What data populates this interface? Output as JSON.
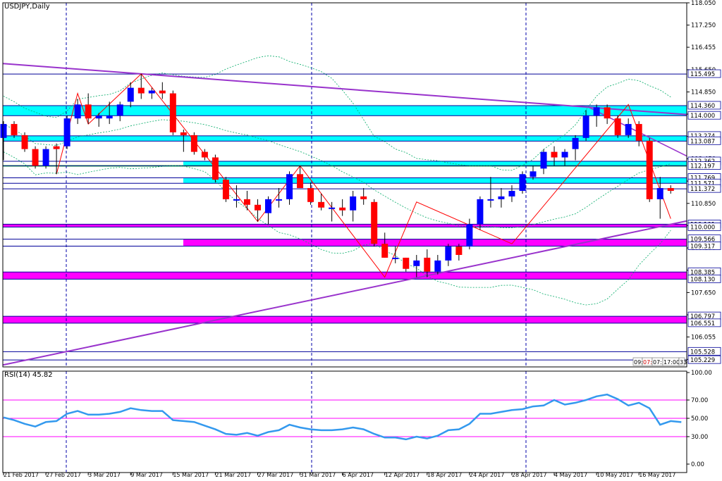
{
  "symbol_label": "USDJPY,Daily",
  "rsi_label": "RSI(14) 45.82",
  "timer": [
    "09:",
    "07:",
    "07:",
    "17:00",
    "33"
  ],
  "colors": {
    "bull": "#0000ff",
    "bear": "#ff0000",
    "wick": "#000000",
    "cyan_zone": "#00ffff",
    "magenta_zone": "#ff00ff",
    "trendline": "#9933cc",
    "zigzag": "#ff0000",
    "bollinger": "#00aa66",
    "rsi_line": "#3399ee",
    "rsi_level": "#ff00ff",
    "grid": "#0000aa",
    "level_line": "#000099"
  },
  "chart_data": [
    {
      "type": "candlestick",
      "title": "USDJPY,Daily",
      "x_tick_labels": [
        "21 Feb 2017",
        "27 Feb 2017",
        "3 Mar 2017",
        "9 Mar 2017",
        "15 Mar 2017",
        "21 Mar 2017",
        "27 Mar 2017",
        "31 Mar 2017",
        "6 Apr 2017",
        "12 Apr 2017",
        "18 Apr 2017",
        "24 Apr 2017",
        "28 Apr 2017",
        "4 May 2017",
        "10 May 2017",
        "16 May 2017"
      ],
      "y_tick_labels": [
        "118.050",
        "117.250",
        "116.455",
        "115.650",
        "114.850",
        "114.055",
        "113.255",
        "112.450",
        "111.650",
        "110.850",
        "110.055",
        "109.250",
        "108.450",
        "107.650",
        "106.850",
        "106.055",
        "105.250"
      ],
      "ylim": [
        104.98,
        118.05
      ],
      "price_levels": [
        "115.495",
        "114.360",
        "114.000",
        "113.274",
        "113.087",
        "112.362",
        "112.197",
        "111.769",
        "111.571",
        "111.372",
        "110.101",
        "110.000",
        "109.566",
        "109.317",
        "108.385",
        "108.130",
        "106.797",
        "106.551",
        "105.528",
        "105.229"
      ],
      "zones": [
        {
          "top": 114.36,
          "bottom": 114.0,
          "color": "cyan"
        },
        {
          "top": 113.274,
          "bottom": 113.087,
          "color": "cyan"
        },
        {
          "top": 112.362,
          "bottom": 112.197,
          "color": "cyan"
        },
        {
          "top": 111.769,
          "bottom": 111.571,
          "color": "cyan"
        },
        {
          "top": 110.101,
          "bottom": 110.0,
          "color": "magenta"
        },
        {
          "top": 109.566,
          "bottom": 109.317,
          "color": "magenta"
        },
        {
          "top": 108.385,
          "bottom": 108.13,
          "color": "magenta"
        },
        {
          "top": 106.797,
          "bottom": 106.551,
          "color": "magenta"
        }
      ],
      "candles": [
        {
          "date": "21 Feb 2017",
          "o": 113.2,
          "h": 113.8,
          "l": 112.4,
          "c": 113.7
        },
        {
          "date": "22 Feb 2017",
          "o": 113.7,
          "h": 113.8,
          "l": 113.2,
          "c": 113.3
        },
        {
          "date": "23 Feb 2017",
          "o": 113.3,
          "h": 113.4,
          "l": 112.7,
          "c": 112.8
        },
        {
          "date": "24 Feb 2017",
          "o": 112.8,
          "h": 112.9,
          "l": 112.1,
          "c": 112.2
        },
        {
          "date": "27 Feb 2017",
          "o": 112.2,
          "h": 112.9,
          "l": 112.1,
          "c": 112.8
        },
        {
          "date": "28 Feb 2017",
          "o": 112.9,
          "h": 113.0,
          "l": 111.9,
          "c": 112.8
        },
        {
          "date": "1 Mar 2017",
          "o": 112.9,
          "h": 114.0,
          "l": 112.8,
          "c": 113.9
        },
        {
          "date": "2 Mar 2017",
          "o": 113.9,
          "h": 114.6,
          "l": 113.7,
          "c": 114.4
        },
        {
          "date": "3 Mar 2017",
          "o": 114.4,
          "h": 114.8,
          "l": 113.7,
          "c": 113.9
        },
        {
          "date": "6 Mar 2017",
          "o": 113.9,
          "h": 114.1,
          "l": 113.6,
          "c": 114.0
        },
        {
          "date": "7 Mar 2017",
          "o": 113.9,
          "h": 114.5,
          "l": 113.7,
          "c": 114.0
        },
        {
          "date": "8 Mar 2017",
          "o": 114.0,
          "h": 114.5,
          "l": 113.8,
          "c": 114.4
        },
        {
          "date": "9 Mar 2017",
          "o": 114.5,
          "h": 115.2,
          "l": 114.3,
          "c": 115.0
        },
        {
          "date": "10 Mar 2017",
          "o": 115.0,
          "h": 115.5,
          "l": 114.6,
          "c": 114.8
        },
        {
          "date": "13 Mar 2017",
          "o": 114.8,
          "h": 115.0,
          "l": 114.6,
          "c": 114.9
        },
        {
          "date": "14 Mar 2017",
          "o": 114.9,
          "h": 115.2,
          "l": 114.6,
          "c": 114.8
        },
        {
          "date": "15 Mar 2017",
          "o": 114.8,
          "h": 114.9,
          "l": 113.3,
          "c": 113.4
        },
        {
          "date": "16 Mar 2017",
          "o": 113.4,
          "h": 113.5,
          "l": 112.7,
          "c": 113.3
        },
        {
          "date": "17 Mar 2017",
          "o": 113.3,
          "h": 113.4,
          "l": 112.6,
          "c": 112.7
        },
        {
          "date": "20 Mar 2017",
          "o": 112.7,
          "h": 112.8,
          "l": 112.4,
          "c": 112.5
        },
        {
          "date": "21 Mar 2017",
          "o": 112.5,
          "h": 112.6,
          "l": 111.6,
          "c": 111.7
        },
        {
          "date": "22 Mar 2017",
          "o": 111.7,
          "h": 111.8,
          "l": 110.9,
          "c": 111.0
        },
        {
          "date": "23 Mar 2017",
          "o": 111.0,
          "h": 111.5,
          "l": 110.7,
          "c": 111.0
        },
        {
          "date": "24 Mar 2017",
          "o": 111.0,
          "h": 111.3,
          "l": 110.6,
          "c": 110.8
        },
        {
          "date": "27 Mar 2017",
          "o": 110.8,
          "h": 111.0,
          "l": 110.2,
          "c": 110.6
        },
        {
          "date": "28 Mar 2017",
          "o": 110.5,
          "h": 111.1,
          "l": 110.1,
          "c": 111.0
        },
        {
          "date": "29 Mar 2017",
          "o": 111.0,
          "h": 111.4,
          "l": 110.7,
          "c": 111.0
        },
        {
          "date": "30 Mar 2017",
          "o": 111.0,
          "h": 112.0,
          "l": 110.8,
          "c": 111.9
        },
        {
          "date": "31 Mar 2017",
          "o": 111.9,
          "h": 112.2,
          "l": 111.4,
          "c": 111.4
        },
        {
          "date": "3 Apr 2017",
          "o": 111.4,
          "h": 111.6,
          "l": 110.8,
          "c": 110.9
        },
        {
          "date": "4 Apr 2017",
          "o": 110.9,
          "h": 111.2,
          "l": 110.6,
          "c": 110.7
        },
        {
          "date": "5 Apr 2017",
          "o": 110.7,
          "h": 110.9,
          "l": 110.2,
          "c": 110.7
        },
        {
          "date": "6 Apr 2017",
          "o": 110.7,
          "h": 111.0,
          "l": 110.4,
          "c": 110.6
        },
        {
          "date": "7 Apr 2017",
          "o": 110.6,
          "h": 111.3,
          "l": 110.2,
          "c": 111.1
        },
        {
          "date": "10 Apr 2017",
          "o": 111.1,
          "h": 111.4,
          "l": 110.8,
          "c": 111.0
        },
        {
          "date": "11 Apr 2017",
          "o": 110.9,
          "h": 111.0,
          "l": 109.3,
          "c": 109.4
        },
        {
          "date": "12 Apr 2017",
          "o": 109.4,
          "h": 109.8,
          "l": 108.9,
          "c": 108.9
        },
        {
          "date": "13 Apr 2017",
          "o": 108.9,
          "h": 109.3,
          "l": 108.7,
          "c": 108.9
        },
        {
          "date": "14 Apr 2017",
          "o": 108.9,
          "h": 108.9,
          "l": 108.4,
          "c": 108.5
        },
        {
          "date": "17 Apr 2017",
          "o": 108.6,
          "h": 109.0,
          "l": 108.2,
          "c": 108.8
        },
        {
          "date": "18 Apr 2017",
          "o": 108.9,
          "h": 109.2,
          "l": 108.2,
          "c": 108.4
        },
        {
          "date": "19 Apr 2017",
          "o": 108.4,
          "h": 109.0,
          "l": 108.3,
          "c": 108.8
        },
        {
          "date": "20 Apr 2017",
          "o": 108.8,
          "h": 109.4,
          "l": 108.6,
          "c": 109.3
        },
        {
          "date": "21 Apr 2017",
          "o": 109.3,
          "h": 109.4,
          "l": 108.8,
          "c": 109.0
        },
        {
          "date": "24 Apr 2017",
          "o": 109.3,
          "h": 110.3,
          "l": 109.2,
          "c": 110.1
        },
        {
          "date": "25 Apr 2017",
          "o": 110.1,
          "h": 111.1,
          "l": 109.9,
          "c": 111.0
        },
        {
          "date": "26 Apr 2017",
          "o": 111.0,
          "h": 111.8,
          "l": 110.7,
          "c": 111.0
        },
        {
          "date": "27 Apr 2017",
          "o": 111.0,
          "h": 111.4,
          "l": 110.7,
          "c": 111.1
        },
        {
          "date": "28 Apr 2017",
          "o": 111.1,
          "h": 111.5,
          "l": 110.9,
          "c": 111.3
        },
        {
          "date": "1 May 2017",
          "o": 111.3,
          "h": 112.0,
          "l": 111.2,
          "c": 111.9
        },
        {
          "date": "2 May 2017",
          "o": 111.8,
          "h": 112.2,
          "l": 111.7,
          "c": 112.0
        },
        {
          "date": "3 May 2017",
          "o": 112.1,
          "h": 112.8,
          "l": 111.9,
          "c": 112.7
        },
        {
          "date": "4 May 2017",
          "o": 112.7,
          "h": 112.9,
          "l": 112.2,
          "c": 112.5
        },
        {
          "date": "5 May 2017",
          "o": 112.5,
          "h": 112.8,
          "l": 112.2,
          "c": 112.7
        },
        {
          "date": "8 May 2017",
          "o": 112.8,
          "h": 113.3,
          "l": 112.4,
          "c": 113.2
        },
        {
          "date": "9 May 2017",
          "o": 113.2,
          "h": 114.2,
          "l": 113.1,
          "c": 114.0
        },
        {
          "date": "10 May 2017",
          "o": 114.0,
          "h": 114.4,
          "l": 113.6,
          "c": 114.3
        },
        {
          "date": "11 May 2017",
          "o": 114.3,
          "h": 114.4,
          "l": 113.7,
          "c": 113.9
        },
        {
          "date": "12 May 2017",
          "o": 113.9,
          "h": 114.0,
          "l": 113.2,
          "c": 113.3
        },
        {
          "date": "15 May 2017",
          "o": 113.3,
          "h": 113.9,
          "l": 113.2,
          "c": 113.7
        },
        {
          "date": "16 May 2017",
          "o": 113.7,
          "h": 113.8,
          "l": 112.9,
          "c": 113.1
        },
        {
          "date": "17 May 2017",
          "o": 113.1,
          "h": 113.2,
          "l": 110.9,
          "c": 111.0
        },
        {
          "date": "18 May 2017",
          "o": 111.0,
          "h": 111.8,
          "l": 110.3,
          "c": 111.4
        },
        {
          "date": "19 May 2017",
          "o": 111.4,
          "h": 111.5,
          "l": 111.2,
          "c": 111.3
        }
      ]
    },
    {
      "type": "line",
      "title": "RSI(14) 45.82",
      "y_tick_labels": [
        "100.00",
        "70.00",
        "50.00",
        "30.00",
        "0.00"
      ],
      "ylim": [
        0,
        100
      ],
      "levels": [
        70,
        50,
        30
      ],
      "series": [
        {
          "values": [
            51,
            48,
            44,
            41,
            46,
            47,
            55,
            58,
            54,
            54,
            55,
            57,
            61,
            59,
            58,
            58,
            48,
            47,
            46,
            42,
            38,
            33,
            32,
            34,
            31,
            35,
            37,
            43,
            40,
            38,
            37,
            37,
            38,
            40,
            38,
            33,
            29,
            29,
            27,
            30,
            28,
            31,
            37,
            38,
            44,
            55,
            55,
            57,
            59,
            60,
            63,
            64,
            70,
            65,
            67,
            70,
            74,
            76,
            71,
            64,
            67,
            61,
            43,
            47,
            45.82
          ]
        }
      ]
    }
  ]
}
